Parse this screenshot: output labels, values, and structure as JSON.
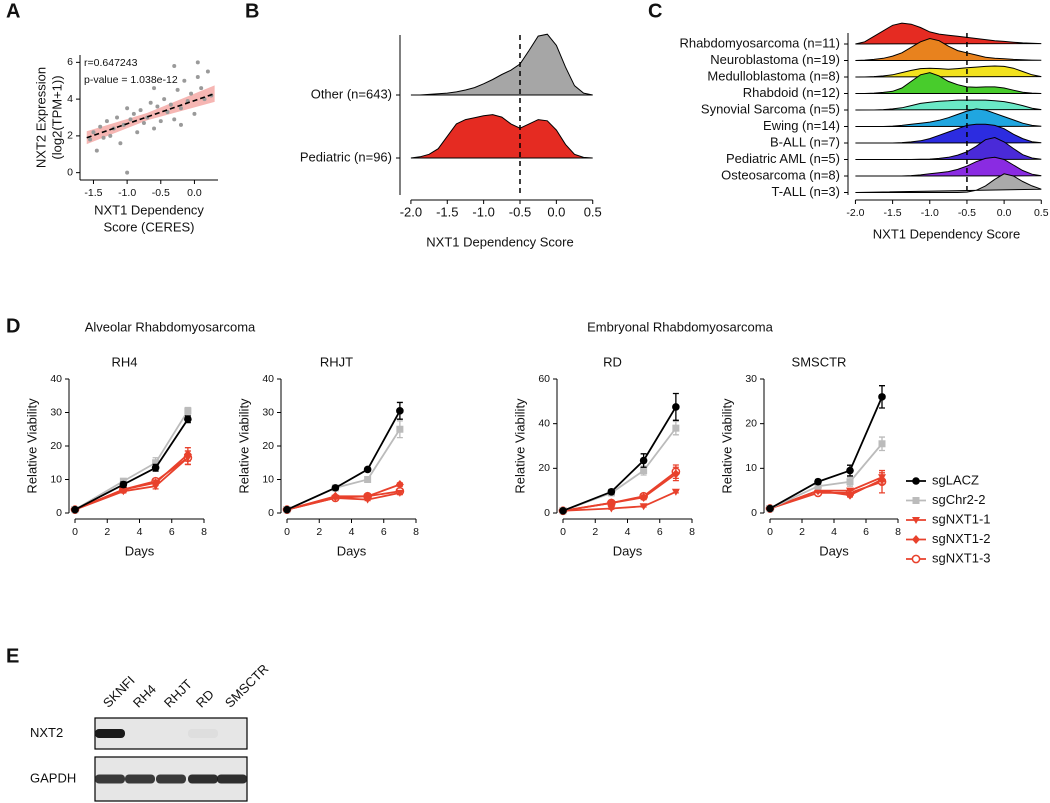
{
  "chart_data": [
    {
      "type": "scatter",
      "panel": "A",
      "annotations": [
        "r=0.647243",
        "p-value = 1.038e-12"
      ],
      "ylabel": [
        "NXT2 Expression",
        "(log2(TPM+1))"
      ],
      "xlabel": [
        "NXT1 Dependency",
        "Score (CERES)"
      ],
      "x": [
        -1.55,
        -1.5,
        -1.45,
        -1.4,
        -1.35,
        -1.3,
        -1.25,
        -1.2,
        -1.15,
        -1.1,
        -1.05,
        -1.0,
        -0.95,
        -0.9,
        -0.85,
        -0.8,
        -0.75,
        -0.7,
        -0.65,
        -0.6,
        -0.55,
        -0.5,
        -0.45,
        -0.4,
        -0.35,
        -0.3,
        -0.25,
        -0.2,
        -0.15,
        -0.1,
        -0.05,
        0.0,
        0.05,
        0.1,
        0.15,
        0.2,
        0.25,
        -1.0,
        -0.6,
        -0.3,
        0.05,
        -0.2
      ],
      "values": [
        1.8,
        2.2,
        1.2,
        2.5,
        1.9,
        2.8,
        2.0,
        2.4,
        3.0,
        1.6,
        2.6,
        0.0,
        2.9,
        3.2,
        2.2,
        3.4,
        2.7,
        3.0,
        3.8,
        2.4,
        3.6,
        2.8,
        4.0,
        3.3,
        3.7,
        2.9,
        4.5,
        3.5,
        5.0,
        3.9,
        4.3,
        3.2,
        5.2,
        4.6,
        4.0,
        5.5,
        4.2,
        3.5,
        4.6,
        5.8,
        6.0,
        2.6
      ],
      "color": "#9a9a9a",
      "fit": {
        "x": [
          -1.6,
          0.3
        ],
        "y": [
          1.9,
          4.3
        ],
        "color": "#000000"
      },
      "ci": {
        "x": [
          -1.6,
          -0.7,
          0.3
        ],
        "lower": [
          1.55,
          2.85,
          3.85
        ],
        "upper": [
          2.25,
          3.25,
          4.75
        ],
        "color": "#f4a4a0"
      },
      "xlim": [
        -1.7,
        0.35
      ],
      "ylim": [
        -0.4,
        6.4
      ],
      "xticks": [
        -1.5,
        {
          "value": -1,
          "label": "-1.0"
        },
        -0.5,
        {
          "value": 0,
          "label": "0.0"
        }
      ],
      "yticks": [
        0,
        2,
        4,
        6
      ]
    },
    {
      "type": "ridgeline",
      "panel": "B",
      "xlabel": "NXT1 Dependency Score",
      "x": [
        -2,
        -1.875,
        -1.75,
        -1.625,
        -1.5,
        -1.375,
        -1.25,
        -1.125,
        -1,
        -0.875,
        -0.75,
        -0.625,
        -0.5,
        -0.375,
        -0.25,
        -0.125,
        0,
        0.125,
        0.25,
        0.375,
        0.5
      ],
      "series": [
        {
          "name": "Other (n=643)",
          "color": "#a6a6a6",
          "values": [
            0,
            0,
            0.01,
            0.02,
            0.03,
            0.05,
            0.08,
            0.12,
            0.18,
            0.25,
            0.33,
            0.4,
            0.5,
            0.72,
            0.95,
            0.98,
            0.8,
            0.45,
            0.15,
            0.03,
            0
          ]
        },
        {
          "name": "Pediatric (n=96)",
          "color": "#e52b22",
          "values": [
            0,
            0.02,
            0.06,
            0.15,
            0.35,
            0.55,
            0.62,
            0.65,
            0.68,
            0.7,
            0.66,
            0.55,
            0.48,
            0.55,
            0.62,
            0.6,
            0.45,
            0.22,
            0.06,
            0.01,
            0
          ]
        }
      ],
      "vline": -0.5,
      "xlim": [
        -2.15,
        0.6
      ],
      "xticks": [
        {
          "value": -2,
          "label": "-2.0"
        },
        -1.5,
        {
          "value": -1,
          "label": "-1.0"
        },
        -0.5,
        {
          "value": 0,
          "label": "0.0"
        },
        0.5
      ]
    },
    {
      "type": "ridgeline",
      "panel": "C",
      "xlabel": "NXT1 Dependency Score",
      "x": [
        -2,
        -1.875,
        -1.75,
        -1.625,
        -1.5,
        -1.375,
        -1.25,
        -1.125,
        -1,
        -0.875,
        -0.75,
        -0.625,
        -0.5,
        -0.375,
        -0.25,
        -0.125,
        0,
        0.125,
        0.25,
        0.375,
        0.5
      ],
      "series": [
        {
          "name": "Rhabdomyosarcoma (n=11)",
          "color": "#e52b22",
          "values": [
            0,
            0.1,
            0.35,
            0.6,
            0.85,
            0.95,
            0.9,
            0.75,
            0.55,
            0.45,
            0.4,
            0.35,
            0.3,
            0.25,
            0.2,
            0.15,
            0.12,
            0.08,
            0.05,
            0.03,
            0.02
          ]
        },
        {
          "name": "Neuroblastoma (n=19)",
          "color": "#e8821e",
          "values": [
            0,
            0.02,
            0.05,
            0.1,
            0.2,
            0.35,
            0.6,
            0.85,
            1.0,
            0.9,
            0.65,
            0.45,
            0.35,
            0.25,
            0.15,
            0.1,
            0.08,
            0.05,
            0.03,
            0.02,
            0.01
          ]
        },
        {
          "name": "Medulloblastoma (n=8)",
          "color": "#f2e21e",
          "values": [
            0,
            0,
            0.02,
            0.05,
            0.1,
            0.2,
            0.3,
            0.38,
            0.4,
            0.38,
            0.35,
            0.38,
            0.42,
            0.45,
            0.48,
            0.5,
            0.48,
            0.4,
            0.25,
            0.1,
            0.02
          ]
        },
        {
          "name": "Rhabdoid (n=12)",
          "color": "#48cc2c",
          "values": [
            0,
            0,
            0.02,
            0.05,
            0.1,
            0.25,
            0.55,
            0.85,
            0.95,
            0.8,
            0.55,
            0.4,
            0.3,
            0.28,
            0.3,
            0.3,
            0.25,
            0.15,
            0.06,
            0.02,
            0
          ]
        },
        {
          "name": "Synovial Sarcoma (n=5)",
          "color": "#6ae8c6",
          "values": [
            0,
            0,
            0,
            0.02,
            0.05,
            0.1,
            0.2,
            0.3,
            0.35,
            0.4,
            0.42,
            0.45,
            0.45,
            0.45,
            0.45,
            0.42,
            0.38,
            0.3,
            0.2,
            0.08,
            0.02
          ]
        },
        {
          "name": "Ewing (n=14)",
          "color": "#20a6e0",
          "values": [
            0,
            0,
            0,
            0,
            0.02,
            0.05,
            0.1,
            0.15,
            0.2,
            0.28,
            0.4,
            0.55,
            0.7,
            0.8,
            0.75,
            0.6,
            0.45,
            0.3,
            0.15,
            0.05,
            0.01
          ]
        },
        {
          "name": "B-ALL (n=7)",
          "color": "#2c2ce0",
          "values": [
            0,
            0,
            0,
            0,
            0,
            0.02,
            0.05,
            0.1,
            0.2,
            0.35,
            0.5,
            0.65,
            0.8,
            0.85,
            0.85,
            0.8,
            0.65,
            0.4,
            0.2,
            0.06,
            0.01
          ]
        },
        {
          "name": "Pediatric AML (n=5)",
          "color": "#4a2ad8",
          "values": [
            0,
            0,
            0,
            0,
            0,
            0,
            0,
            0.01,
            0.02,
            0.05,
            0.1,
            0.2,
            0.35,
            0.6,
            0.9,
            1.0,
            0.8,
            0.5,
            0.22,
            0.07,
            0.01
          ]
        },
        {
          "name": "Osteosarcoma (n=8)",
          "color": "#8a2be2",
          "values": [
            0,
            0,
            0,
            0,
            0,
            0,
            0.02,
            0.05,
            0.1,
            0.15,
            0.2,
            0.3,
            0.45,
            0.65,
            0.8,
            0.85,
            0.75,
            0.5,
            0.25,
            0.08,
            0.01
          ]
        },
        {
          "name": "T-ALL (n=3)",
          "color": "#aaaaaa",
          "values": [
            0,
            0,
            0,
            0,
            0,
            0,
            0,
            0,
            0,
            0,
            0,
            0,
            0.02,
            0.1,
            0.3,
            0.6,
            0.85,
            0.75,
            0.5,
            0.3,
            0.15
          ]
        }
      ],
      "vline": -0.5,
      "xlim": [
        -2.1,
        0.55
      ],
      "xticks": [
        {
          "value": -2,
          "label": "-2.0"
        },
        -1.5,
        {
          "value": -1,
          "label": "-1.0"
        },
        -0.5,
        {
          "value": 0,
          "label": "0.0"
        },
        0.5
      ]
    },
    {
      "type": "multi-line",
      "panel": "D",
      "group_titles": [
        "Alveolar Rhabdomyosarcoma",
        "Embryonal Rhabdomyosarcoma"
      ],
      "xlabel": "Days",
      "ylabel": "Relative Viability",
      "x": [
        0,
        3,
        5,
        7
      ],
      "xlim": [
        0,
        8
      ],
      "xticks": [
        0,
        2,
        4,
        6,
        8
      ],
      "legend": [
        {
          "name": "sgLACZ",
          "color": "#000000",
          "marker": "circle"
        },
        {
          "name": "sgChr2-2",
          "color": "#bbbbbb",
          "marker": "square"
        },
        {
          "name": "sgNXT1-1",
          "color": "#e8412c",
          "marker": "triangle-down"
        },
        {
          "name": "sgNXT1-2",
          "color": "#e8412c",
          "marker": "diamond"
        },
        {
          "name": "sgNXT1-3",
          "color": "#e8412c",
          "marker": "open-circle"
        }
      ],
      "subplots": [
        {
          "title": "RH4",
          "ylim": [
            0,
            40
          ],
          "yticks": [
            0,
            10,
            20,
            30,
            40
          ],
          "series": [
            {
              "values": [
                1,
                8.5,
                13.5,
                28
              ],
              "errors": [
                0,
                0.8,
                1,
                1
              ]
            },
            {
              "values": [
                1,
                9.5,
                15,
                30.5
              ],
              "errors": [
                0,
                0.5,
                1.5,
                1
              ]
            },
            {
              "values": [
                1,
                6.5,
                8,
                16.5
              ],
              "errors": [
                0,
                0.5,
                0.8,
                2
              ]
            },
            {
              "values": [
                1,
                7,
                9,
                17.5
              ],
              "errors": [
                0,
                0.5,
                0.8,
                2
              ]
            },
            {
              "values": [
                1,
                7,
                9.5,
                16.5
              ],
              "errors": [
                0,
                0.5,
                0.8,
                2
              ]
            }
          ]
        },
        {
          "title": "RHJT",
          "ylim": [
            0,
            40
          ],
          "yticks": [
            0,
            10,
            20,
            30,
            40
          ],
          "series": [
            {
              "values": [
                1,
                7.5,
                13,
                30.5
              ],
              "errors": [
                0,
                0.5,
                0.5,
                2.5
              ]
            },
            {
              "values": [
                1,
                7.5,
                10,
                25
              ],
              "errors": [
                0,
                0.5,
                0.5,
                2.5
              ]
            },
            {
              "values": [
                1,
                4.5,
                4,
                6
              ],
              "errors": [
                0,
                0.3,
                0.3,
                0.5
              ]
            },
            {
              "values": [
                1,
                5,
                5,
                8.5
              ],
              "errors": [
                0,
                0.3,
                0.3,
                0.5
              ]
            },
            {
              "values": [
                1,
                4.5,
                5,
                6.5
              ],
              "errors": [
                0,
                0.3,
                0.3,
                0.8
              ]
            }
          ]
        },
        {
          "title": "RD",
          "ylim": [
            0,
            60
          ],
          "yticks": [
            0,
            20,
            40,
            60
          ],
          "series": [
            {
              "values": [
                1,
                9.5,
                23.5,
                47.5
              ],
              "errors": [
                0,
                1,
                3,
                6
              ]
            },
            {
              "values": [
                1,
                9,
                19,
                38
              ],
              "errors": [
                0,
                1,
                2,
                3
              ]
            },
            {
              "values": [
                1,
                2,
                3,
                9.5
              ],
              "errors": [
                0,
                0.3,
                0.3,
                0.5
              ]
            },
            {
              "values": [
                1,
                4.5,
                7,
                17.5
              ],
              "errors": [
                0,
                0.5,
                1,
                3
              ]
            },
            {
              "values": [
                1,
                4.5,
                7.5,
                18.5
              ],
              "errors": [
                0,
                0.5,
                1,
                3
              ]
            }
          ]
        },
        {
          "title": "SMSCTR",
          "ylim": [
            0,
            30
          ],
          "yticks": [
            0,
            10,
            20,
            30
          ],
          "series": [
            {
              "values": [
                1,
                7,
                9.5,
                26
              ],
              "errors": [
                0,
                0.5,
                1.2,
                2.5
              ]
            },
            {
              "values": [
                1,
                6,
                7,
                15.5
              ],
              "errors": [
                0,
                0.5,
                1,
                1.5
              ]
            },
            {
              "values": [
                1,
                5,
                5,
                8
              ],
              "errors": [
                0,
                0.4,
                0.4,
                1
              ]
            },
            {
              "values": [
                1,
                5,
                4,
                7.5
              ],
              "errors": [
                0,
                0.4,
                0.4,
                1
              ]
            },
            {
              "values": [
                1,
                4.5,
                4.5,
                7
              ],
              "errors": [
                0,
                0.5,
                0.5,
                2.5
              ]
            }
          ]
        }
      ]
    }
  ],
  "blot": {
    "panel": "E",
    "lanes": [
      "SKNFI",
      "RH4",
      "RHJT",
      "RD",
      "SMSCTR"
    ],
    "rows": [
      {
        "name": "NXT2",
        "bands": [
          1,
          0,
          0,
          0.04,
          0
        ]
      },
      {
        "name": "GAPDH",
        "bands": [
          0.85,
          0.85,
          0.85,
          0.9,
          0.9
        ]
      }
    ]
  }
}
